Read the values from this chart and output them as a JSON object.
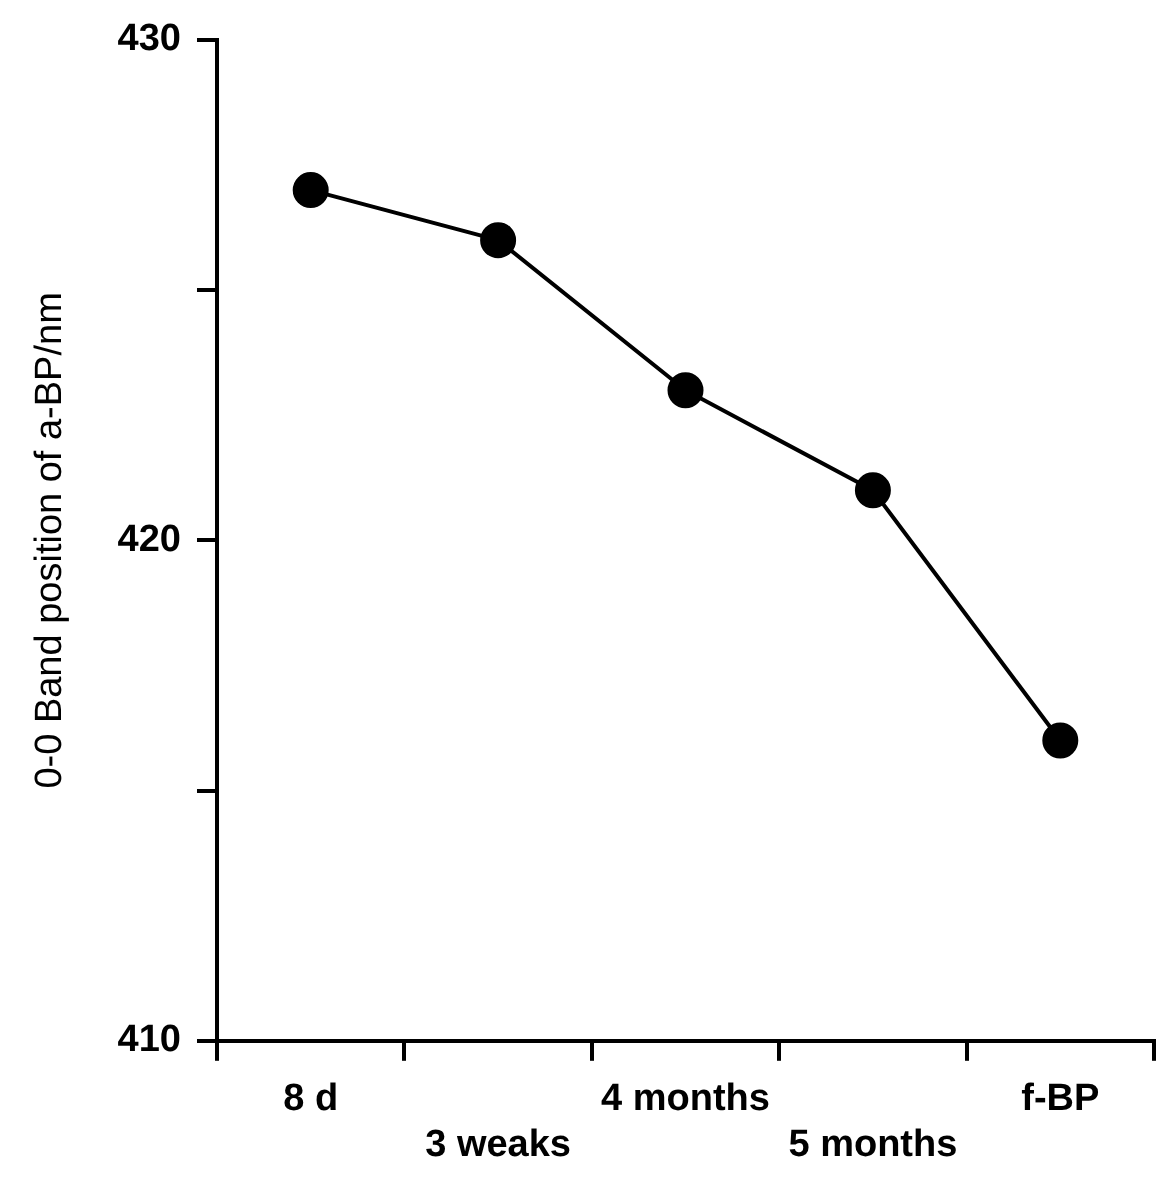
{
  "chart_data": {
    "type": "line",
    "ylabel": "0-0 Band position of a-BP/nm",
    "categories": [
      "8 d",
      "3 weaks",
      "4 months",
      "5 months",
      "f-BP"
    ],
    "values": [
      427,
      426,
      423,
      421,
      416
    ],
    "color": "#000000",
    "marker": "circle",
    "line_style": "solid",
    "ylim": [
      410,
      430
    ],
    "yticks": [
      410,
      {
        "value": 415,
        "label": null
      },
      420,
      {
        "value": 425,
        "label": null
      },
      430
    ],
    "grid": false,
    "legend": false
  }
}
